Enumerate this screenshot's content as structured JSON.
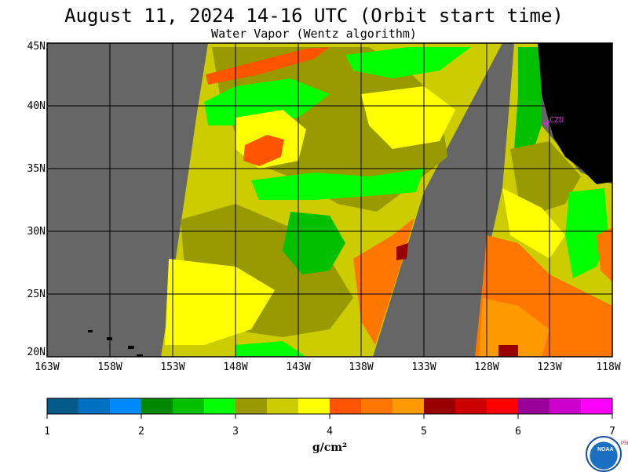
{
  "header": {
    "title": "August 11, 2024  14-16 UTC  (Orbit start time)",
    "subtitle": "Water Vapor (Wentz algorithm)"
  },
  "map": {
    "lat_labels": [
      "45N",
      "40N",
      "35N",
      "30N",
      "25N",
      "20N"
    ],
    "lon_labels": [
      "163W",
      "158W",
      "153W",
      "148W",
      "143W",
      "138W",
      "133W",
      "128W",
      "123W",
      "118W"
    ],
    "station_label": "CZD",
    "colors": {
      "no_data": "#666666",
      "land": "#000000",
      "grid": "#000000",
      "station": "#e020e0"
    }
  },
  "colorbar": {
    "tick_labels": [
      "1",
      "2",
      "3",
      "4",
      "5",
      "6",
      "7"
    ],
    "unit_label": "g/cm²",
    "colors": [
      "#005a8a",
      "#0070c0",
      "#0088ff",
      "#008800",
      "#00c000",
      "#00ff00",
      "#999900",
      "#cccc00",
      "#ffff00",
      "#ff5500",
      "#ff7700",
      "#ff9900",
      "#990000",
      "#cc0000",
      "#ff0000",
      "#990099",
      "#cc00cc",
      "#ff00ff"
    ]
  },
  "logo": {
    "text": "NOAA",
    "side_text": "PSL"
  }
}
